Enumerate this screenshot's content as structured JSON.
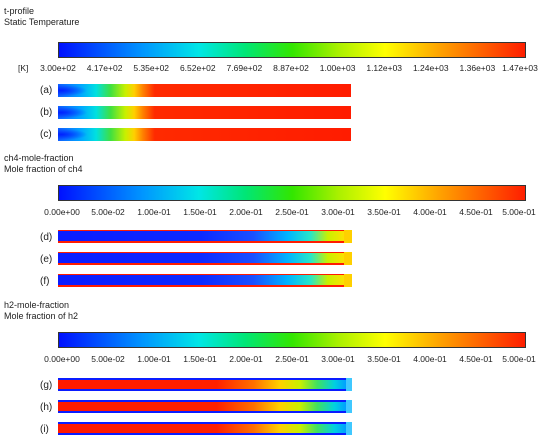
{
  "t_section": {
    "title": "t-profile",
    "subtitle": "Static Temperature",
    "unit": "[K]",
    "ticks": [
      "3.00e+02",
      "4.17e+02",
      "5.35e+02",
      "6.52e+02",
      "7.69e+02",
      "8.87e+02",
      "1.00e+03",
      "1.12e+03",
      "1.24e+03",
      "1.36e+03",
      "1.47e+03"
    ],
    "panels": [
      "(a)",
      "(b)",
      "(c)"
    ]
  },
  "ch4_section": {
    "title": "ch4-mole-fraction",
    "subtitle": "Mole fraction of ch4",
    "ticks": [
      "0.00e+00",
      "5.00e-02",
      "1.00e-01",
      "1.50e-01",
      "2.00e-01",
      "2.50e-01",
      "3.00e-01",
      "3.50e-01",
      "4.00e-01",
      "4.50e-01",
      "5.00e-01"
    ],
    "panels": [
      "(d)",
      "(e)",
      "(f)"
    ]
  },
  "h2_section": {
    "title": "h2-mole-fraction",
    "subtitle": "Mole fraction of h2",
    "ticks": [
      "0.00e+00",
      "5.00e-02",
      "1.00e-01",
      "1.50e-01",
      "2.00e-01",
      "2.50e-01",
      "3.00e-01",
      "3.50e-01",
      "4.00e-01",
      "4.50e-01",
      "5.00e-01"
    ],
    "panels": [
      "(g)",
      "(h)",
      "(i)"
    ]
  },
  "colormap": {
    "low": "#0010ff",
    "mid": "#32e600",
    "high": "#ff1e00"
  }
}
